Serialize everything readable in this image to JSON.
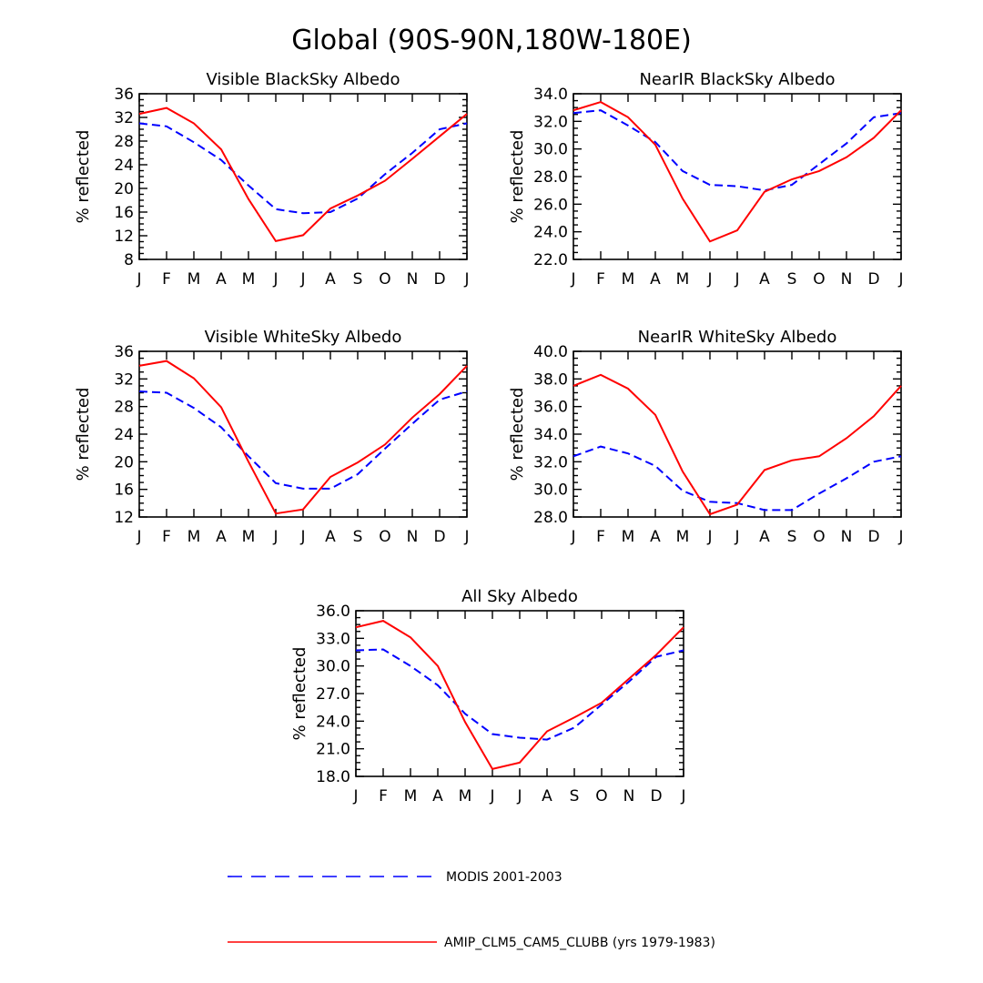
{
  "figure_title": "Global (90S-90N,180W-180E)",
  "legend": {
    "modis_label": "MODIS 2001-2003",
    "model_label": "AMIP_CLM5_CAM5_CLUBB (yrs 1979-1983)"
  },
  "colors": {
    "modis": "#0000ff",
    "model": "#ff0000",
    "axis": "#000000"
  },
  "chart_data": [
    {
      "type": "line",
      "title": "Visible BlackSky Albedo",
      "ylabel": "% reflected",
      "ylim": [
        8,
        36
      ],
      "yticks": [
        "8",
        "12",
        "16",
        "20",
        "24",
        "28",
        "32",
        "36"
      ],
      "ytick_values": [
        8,
        12,
        16,
        20,
        24,
        28,
        32,
        36
      ],
      "categories": [
        "J",
        "F",
        "M",
        "A",
        "M",
        "J",
        "J",
        "A",
        "S",
        "O",
        "N",
        "D",
        "J"
      ],
      "series": [
        {
          "name": "MODIS 2001-2003",
          "values": [
            31.0,
            30.5,
            27.8,
            24.8,
            20.5,
            16.5,
            15.8,
            16.0,
            18.3,
            22.4,
            26.0,
            30.0,
            31.0
          ]
        },
        {
          "name": "AMIP_CLM5_CAM5_CLUBB (yrs 1979-1983)",
          "values": [
            32.6,
            33.6,
            31.0,
            26.6,
            18.2,
            11.1,
            12.1,
            16.6,
            18.8,
            21.3,
            25.0,
            28.8,
            32.6
          ]
        }
      ]
    },
    {
      "type": "line",
      "title": "NearIR BlackSky Albedo",
      "ylabel": "% reflected",
      "ylim": [
        22.0,
        34.0
      ],
      "yticks": [
        "22.0",
        "24.0",
        "26.0",
        "28.0",
        "30.0",
        "32.0",
        "34.0"
      ],
      "ytick_values": [
        22,
        24,
        26,
        28,
        30,
        32,
        34
      ],
      "categories": [
        "J",
        "F",
        "M",
        "A",
        "M",
        "J",
        "J",
        "A",
        "S",
        "O",
        "N",
        "D",
        "J"
      ],
      "series": [
        {
          "name": "MODIS 2001-2003",
          "values": [
            32.6,
            32.8,
            31.7,
            30.5,
            28.4,
            27.4,
            27.3,
            27.0,
            27.4,
            28.9,
            30.4,
            32.3,
            32.6
          ]
        },
        {
          "name": "AMIP_CLM5_CAM5_CLUBB (yrs 1979-1983)",
          "values": [
            32.8,
            33.4,
            32.3,
            30.3,
            26.4,
            23.3,
            24.1,
            26.9,
            27.8,
            28.4,
            29.4,
            30.8,
            32.8
          ]
        }
      ]
    },
    {
      "type": "line",
      "title": "Visible WhiteSky Albedo",
      "ylabel": "% reflected",
      "ylim": [
        12,
        36
      ],
      "yticks": [
        "12",
        "16",
        "20",
        "24",
        "28",
        "32",
        "36"
      ],
      "ytick_values": [
        12,
        16,
        20,
        24,
        28,
        32,
        36
      ],
      "categories": [
        "J",
        "F",
        "M",
        "A",
        "M",
        "J",
        "J",
        "A",
        "S",
        "O",
        "N",
        "D",
        "J"
      ],
      "series": [
        {
          "name": "MODIS 2001-2003",
          "values": [
            30.2,
            30.0,
            27.8,
            25.0,
            20.8,
            16.9,
            16.1,
            16.1,
            18.2,
            21.9,
            25.5,
            29.0,
            30.2
          ]
        },
        {
          "name": "AMIP_CLM5_CAM5_CLUBB (yrs 1979-1983)",
          "values": [
            33.9,
            34.6,
            32.1,
            27.9,
            20.0,
            12.5,
            13.1,
            17.8,
            19.9,
            22.5,
            26.4,
            29.8,
            33.9
          ]
        }
      ]
    },
    {
      "type": "line",
      "title": "NearIR WhiteSky Albedo",
      "ylabel": "% reflected",
      "ylim": [
        28.0,
        40.0
      ],
      "yticks": [
        "28.0",
        "30.0",
        "32.0",
        "34.0",
        "36.0",
        "38.0",
        "40.0"
      ],
      "ytick_values": [
        28,
        30,
        32,
        34,
        36,
        38,
        40
      ],
      "categories": [
        "J",
        "F",
        "M",
        "A",
        "M",
        "J",
        "J",
        "A",
        "S",
        "O",
        "N",
        "D",
        "J"
      ],
      "series": [
        {
          "name": "MODIS 2001-2003",
          "values": [
            32.4,
            33.1,
            32.6,
            31.7,
            29.9,
            29.1,
            29.0,
            28.5,
            28.5,
            29.7,
            30.8,
            32.0,
            32.4
          ]
        },
        {
          "name": "AMIP_CLM5_CAM5_CLUBB (yrs 1979-1983)",
          "values": [
            37.5,
            38.3,
            37.3,
            35.4,
            31.3,
            28.2,
            28.9,
            31.4,
            32.1,
            32.4,
            33.7,
            35.3,
            37.5
          ]
        }
      ]
    },
    {
      "type": "line",
      "title": "All Sky Albedo",
      "ylabel": "% reflected",
      "ylim": [
        18.0,
        36.0
      ],
      "yticks": [
        "18.0",
        "21.0",
        "24.0",
        "27.0",
        "30.0",
        "33.0",
        "36.0"
      ],
      "ytick_values": [
        18,
        21,
        24,
        27,
        30,
        33,
        36
      ],
      "categories": [
        "J",
        "F",
        "M",
        "A",
        "M",
        "J",
        "J",
        "A",
        "S",
        "O",
        "N",
        "D",
        "J"
      ],
      "series": [
        {
          "name": "MODIS 2001-2003",
          "values": [
            31.7,
            31.8,
            30.0,
            27.9,
            24.8,
            22.6,
            22.2,
            22.0,
            23.3,
            25.8,
            28.3,
            31.0,
            31.7
          ]
        },
        {
          "name": "AMIP_CLM5_CAM5_CLUBB (yrs 1979-1983)",
          "values": [
            34.2,
            34.9,
            33.1,
            30.0,
            23.9,
            18.8,
            19.5,
            22.9,
            24.4,
            26.0,
            28.6,
            31.2,
            34.2
          ]
        }
      ]
    }
  ]
}
